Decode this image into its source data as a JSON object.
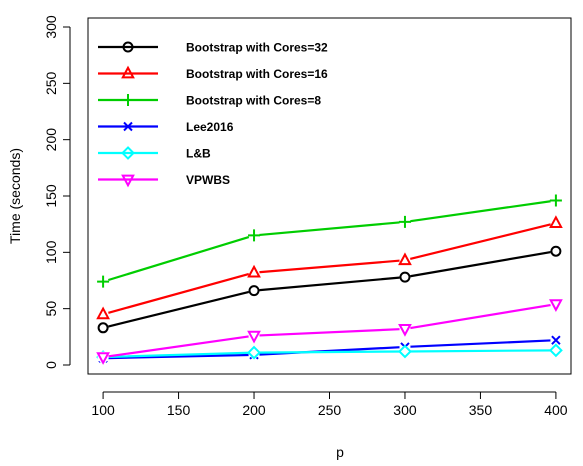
{
  "chart_data": {
    "type": "line",
    "xlabel": "p",
    "ylabel": "Time (seconds)",
    "xlim": [
      90,
      410
    ],
    "ylim": [
      -8,
      308
    ],
    "x_ticks": [
      100,
      150,
      200,
      250,
      300,
      350,
      400
    ],
    "y_ticks": [
      0,
      50,
      100,
      150,
      200,
      250,
      300
    ],
    "legend_position": "top-left",
    "grid": false,
    "x": [
      100,
      200,
      300,
      400
    ],
    "series": [
      {
        "name": "Bootstrap with Cores=32",
        "color": "#000000",
        "marker": "circle",
        "values": [
          33,
          66,
          78,
          101
        ]
      },
      {
        "name": "Bootstrap with Cores=16",
        "color": "#ff0000",
        "marker": "triangle-up",
        "values": [
          45,
          82,
          93,
          126
        ]
      },
      {
        "name": "Bootstrap with Cores=8",
        "color": "#00cd00",
        "marker": "plus",
        "values": [
          74,
          115,
          127,
          146
        ]
      },
      {
        "name": "Lee2016",
        "color": "#0000ff",
        "marker": "x",
        "values": [
          6,
          9,
          16,
          22
        ]
      },
      {
        "name": "L&B",
        "color": "#00ffff",
        "marker": "diamond",
        "values": [
          7,
          11,
          12,
          13
        ]
      },
      {
        "name": "VPWBS",
        "color": "#ff00ff",
        "marker": "triangle-down",
        "values": [
          7,
          26,
          32,
          54
        ]
      }
    ]
  }
}
